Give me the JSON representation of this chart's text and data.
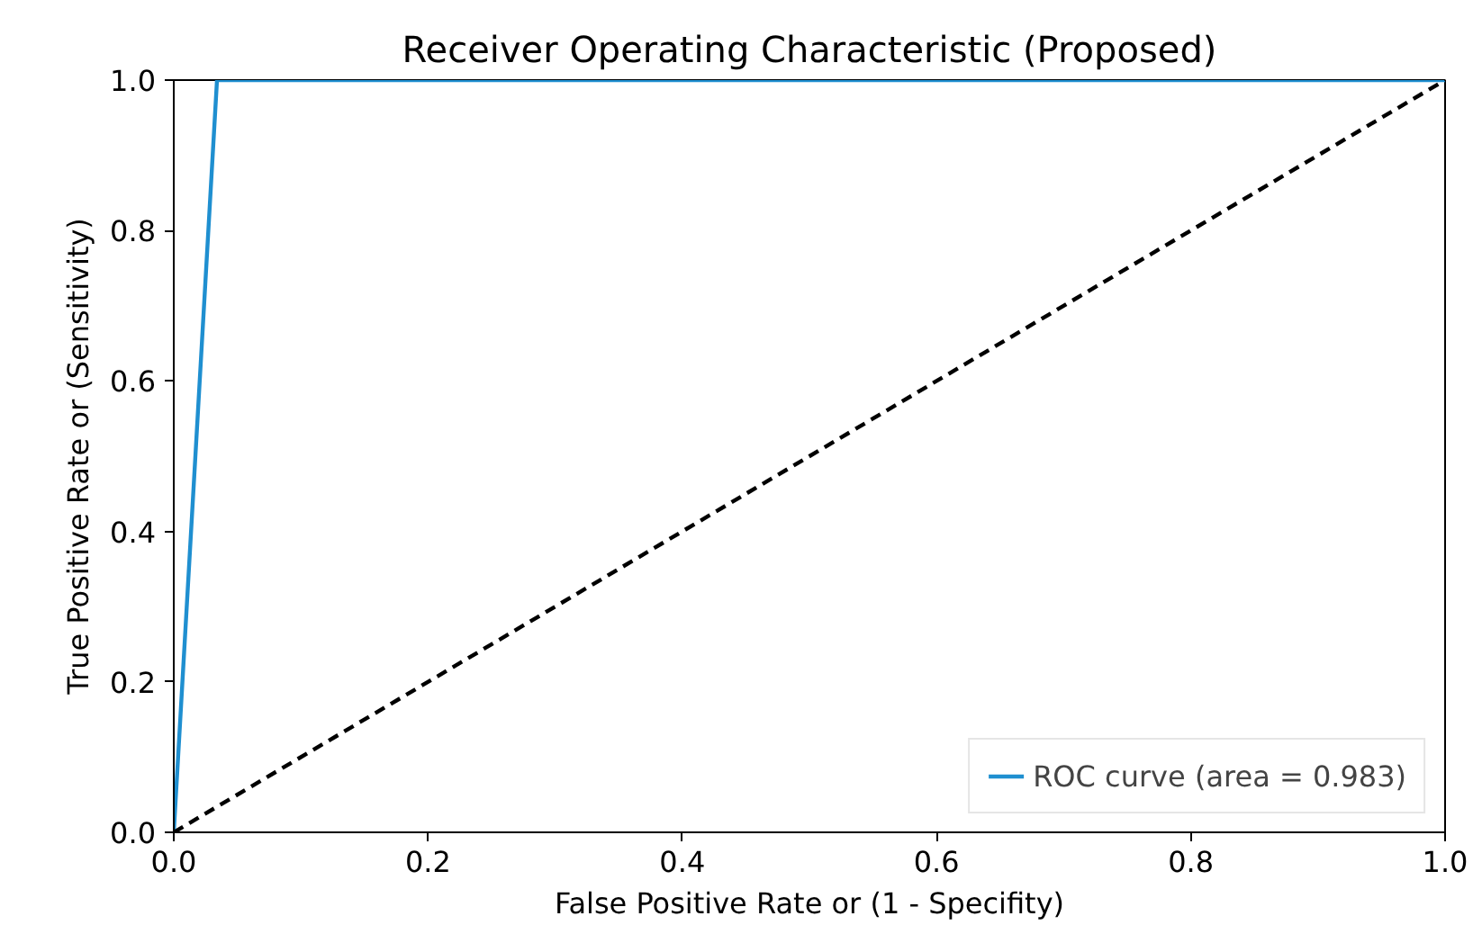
{
  "chart_data": {
    "type": "line",
    "title": "Receiver Operating Characteristic (Proposed)",
    "xlabel": "False Positive Rate or (1 - Specifity)",
    "ylabel": "True Positive Rate or (Sensitivity)",
    "series": [
      {
        "name": "ROC curve (area = 0.983)",
        "color": "#1f8fd0",
        "x": [
          0,
          0.034,
          1
        ],
        "values": [
          0,
          1,
          1
        ],
        "line_style": "solid"
      },
      {
        "color": "#000000",
        "x": [
          0,
          1
        ],
        "values": [
          0,
          1
        ],
        "line_style": "dashed"
      }
    ],
    "xlim": [
      0,
      1
    ],
    "ylim": [
      0,
      1
    ],
    "xticks": [
      {
        "value": 0,
        "label": "0.0"
      },
      0.2,
      0.4,
      0.6,
      0.8,
      {
        "value": 1,
        "label": "1.0"
      }
    ],
    "yticks": [
      {
        "value": 0,
        "label": "0.0"
      },
      0.2,
      0.4,
      0.6,
      0.8,
      {
        "value": 1,
        "label": "1.0"
      }
    ],
    "grid": false,
    "legend": "bottom right",
    "marker": "none"
  }
}
